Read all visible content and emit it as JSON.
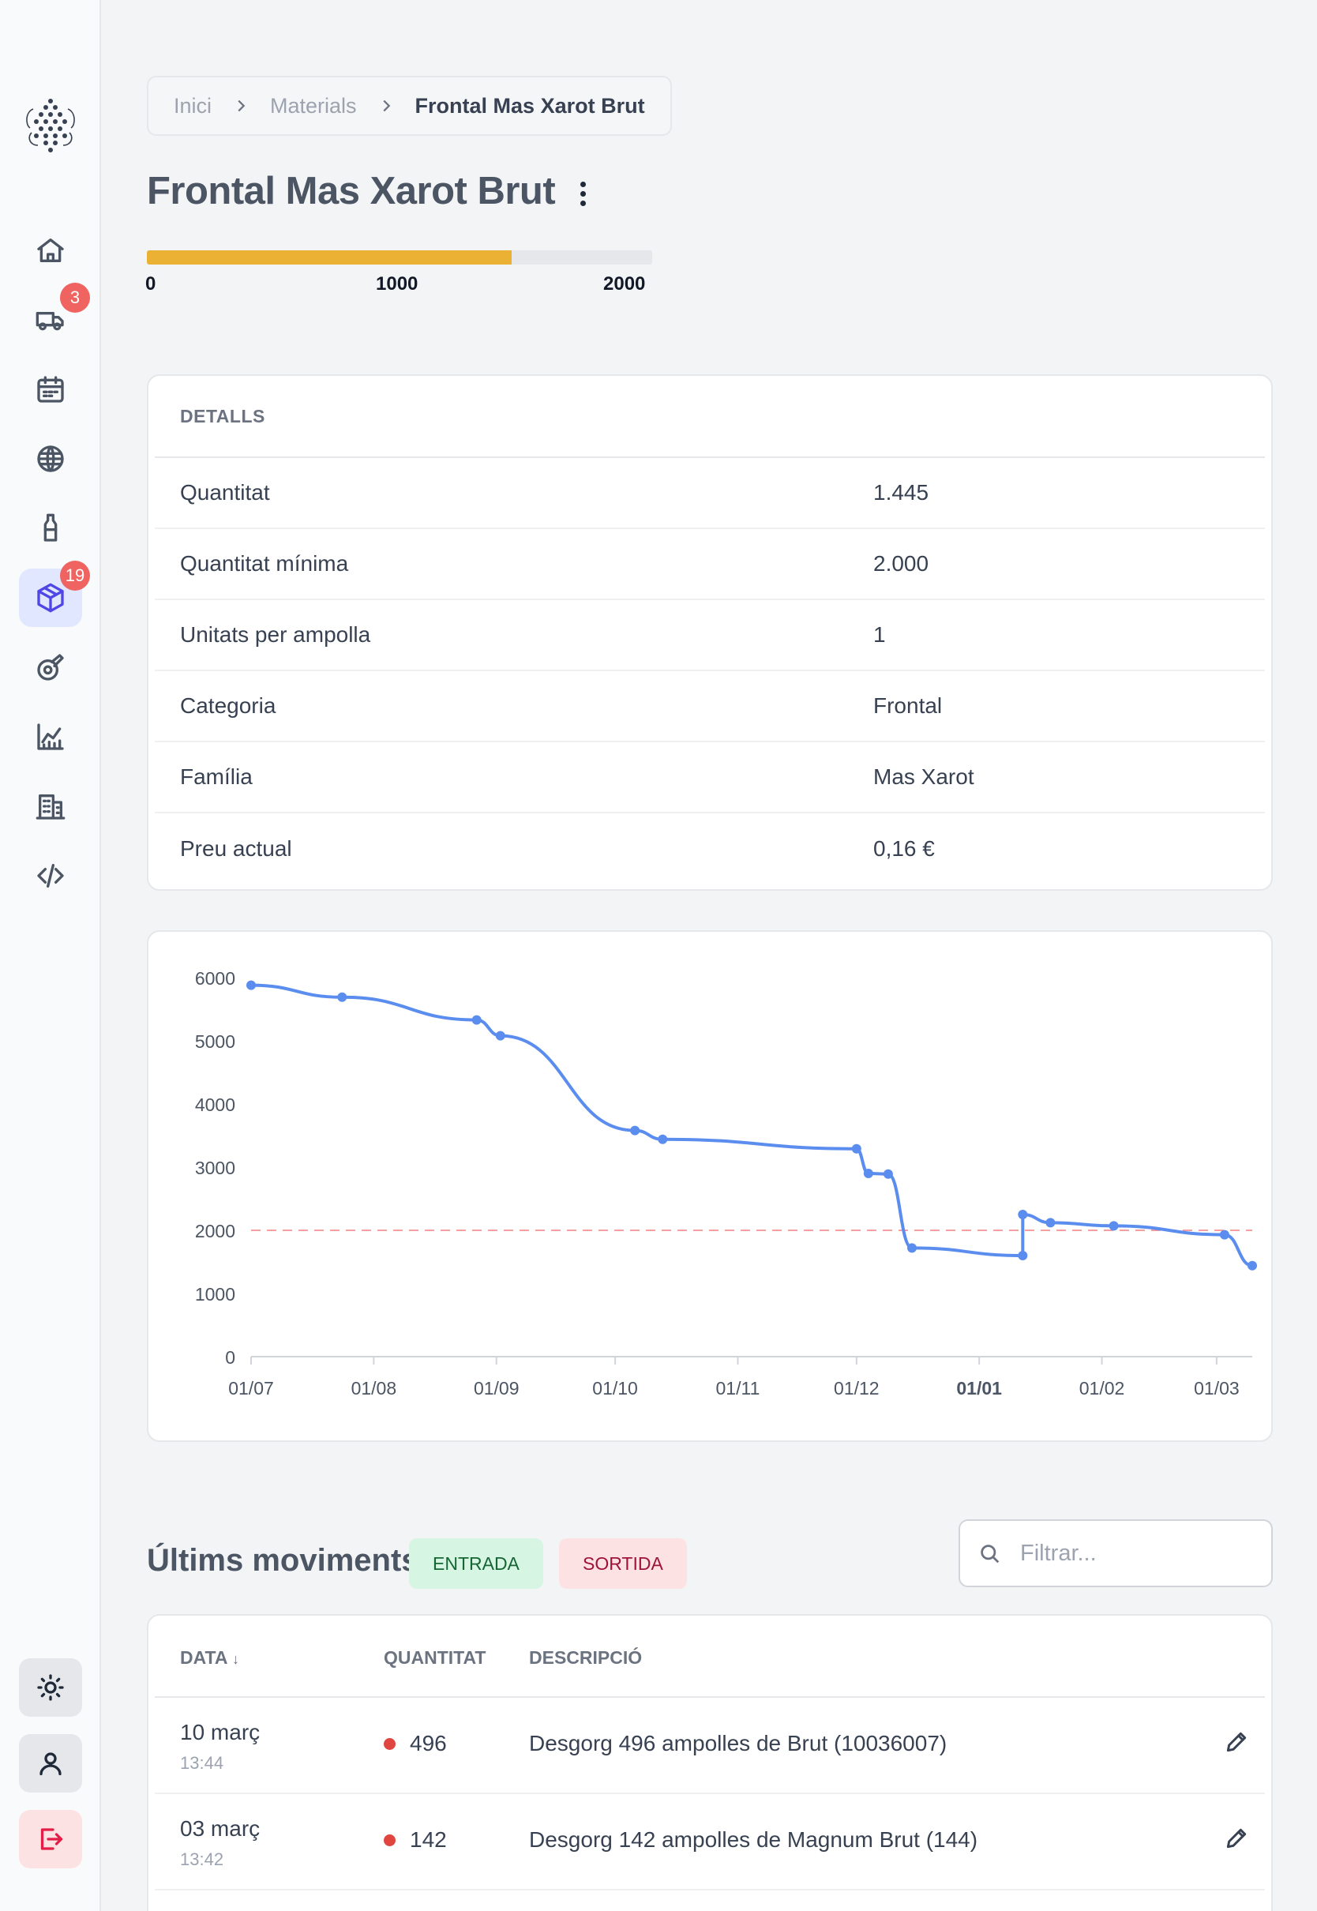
{
  "breadcrumb": {
    "items": [
      "Inici",
      "Materials",
      "Frontal Mas Xarot Brut"
    ]
  },
  "title": "Frontal Mas Xarot Brut",
  "stock": {
    "current": 1445,
    "max": 2000,
    "labels": [
      "0",
      "1000",
      "2000"
    ]
  },
  "sidebar": {
    "items": [
      {
        "icon": "home-icon"
      },
      {
        "icon": "truck-icon",
        "badge": "3"
      },
      {
        "icon": "calendar-icon"
      },
      {
        "icon": "globe-icon"
      },
      {
        "icon": "bottle-icon"
      },
      {
        "icon": "box-icon",
        "badge": "19",
        "active": true
      },
      {
        "icon": "tape-icon"
      },
      {
        "icon": "chart-icon"
      },
      {
        "icon": "building-icon"
      },
      {
        "icon": "code-icon"
      }
    ],
    "bottom": [
      "theme-toggle",
      "profile",
      "logout"
    ]
  },
  "details": {
    "header": "DETALLS",
    "rows": [
      {
        "label": "Quantitat",
        "value": "1.445"
      },
      {
        "label": "Quantitat mínima",
        "value": "2.000"
      },
      {
        "label": "Unitats per ampolla",
        "value": "1"
      },
      {
        "label": "Categoria",
        "value": "Frontal"
      },
      {
        "label": "Família",
        "value": "Mas Xarot"
      },
      {
        "label": "Preu actual",
        "value": "0,16 €"
      }
    ]
  },
  "chart_data": {
    "type": "line",
    "x_tick_labels": [
      "01/07",
      "01/08",
      "01/09",
      "01/10",
      "01/11",
      "01/12",
      "01/01",
      "01/02",
      "01/03"
    ],
    "y_tick_labels": [
      "0",
      "1000",
      "2000",
      "3000",
      "4000",
      "5000",
      "6000"
    ],
    "ylim": [
      0,
      6000
    ],
    "threshold": 2000,
    "threshold_color": "#f08080",
    "line_color": "#5b8def",
    "series": [
      {
        "points": [
          {
            "x": "2023-07-01",
            "y": 5880
          },
          {
            "x": "2023-07-24",
            "y": 5690
          },
          {
            "x": "2023-08-27",
            "y": 5330
          },
          {
            "x": "2023-09-02",
            "y": 5080
          },
          {
            "x": "2023-10-06",
            "y": 3580
          },
          {
            "x": "2023-10-13",
            "y": 3440
          },
          {
            "x": "2023-12-01",
            "y": 3290
          },
          {
            "x": "2023-12-04",
            "y": 2900
          },
          {
            "x": "2023-12-09",
            "y": 2890
          },
          {
            "x": "2023-12-15",
            "y": 1720
          },
          {
            "x": "2024-01-12",
            "y": 1600
          },
          {
            "x": "2024-01-12",
            "y": 2250
          },
          {
            "x": "2024-01-19",
            "y": 2120
          },
          {
            "x": "2024-02-04",
            "y": 2070
          },
          {
            "x": "2024-03-03",
            "y": 1930
          },
          {
            "x": "2024-03-10",
            "y": 1440
          }
        ]
      }
    ]
  },
  "movements": {
    "title": "Últims moviments",
    "tag_in": "ENTRADA",
    "tag_out": "SORTIDA",
    "search_placeholder": "Filtrar...",
    "columns": [
      "DATA",
      "QUANTITAT",
      "DESCRIPCIÓ"
    ],
    "rows": [
      {
        "date": "10 març",
        "time": "13:44",
        "qty": "496",
        "type": "out",
        "desc": "Desgorg 496 ampolles de Brut (10036007)"
      },
      {
        "date": "03 març",
        "time": "13:42",
        "qty": "142",
        "type": "out",
        "desc": "Desgorg 142 ampolles de Magnum Brut (144)"
      }
    ]
  }
}
